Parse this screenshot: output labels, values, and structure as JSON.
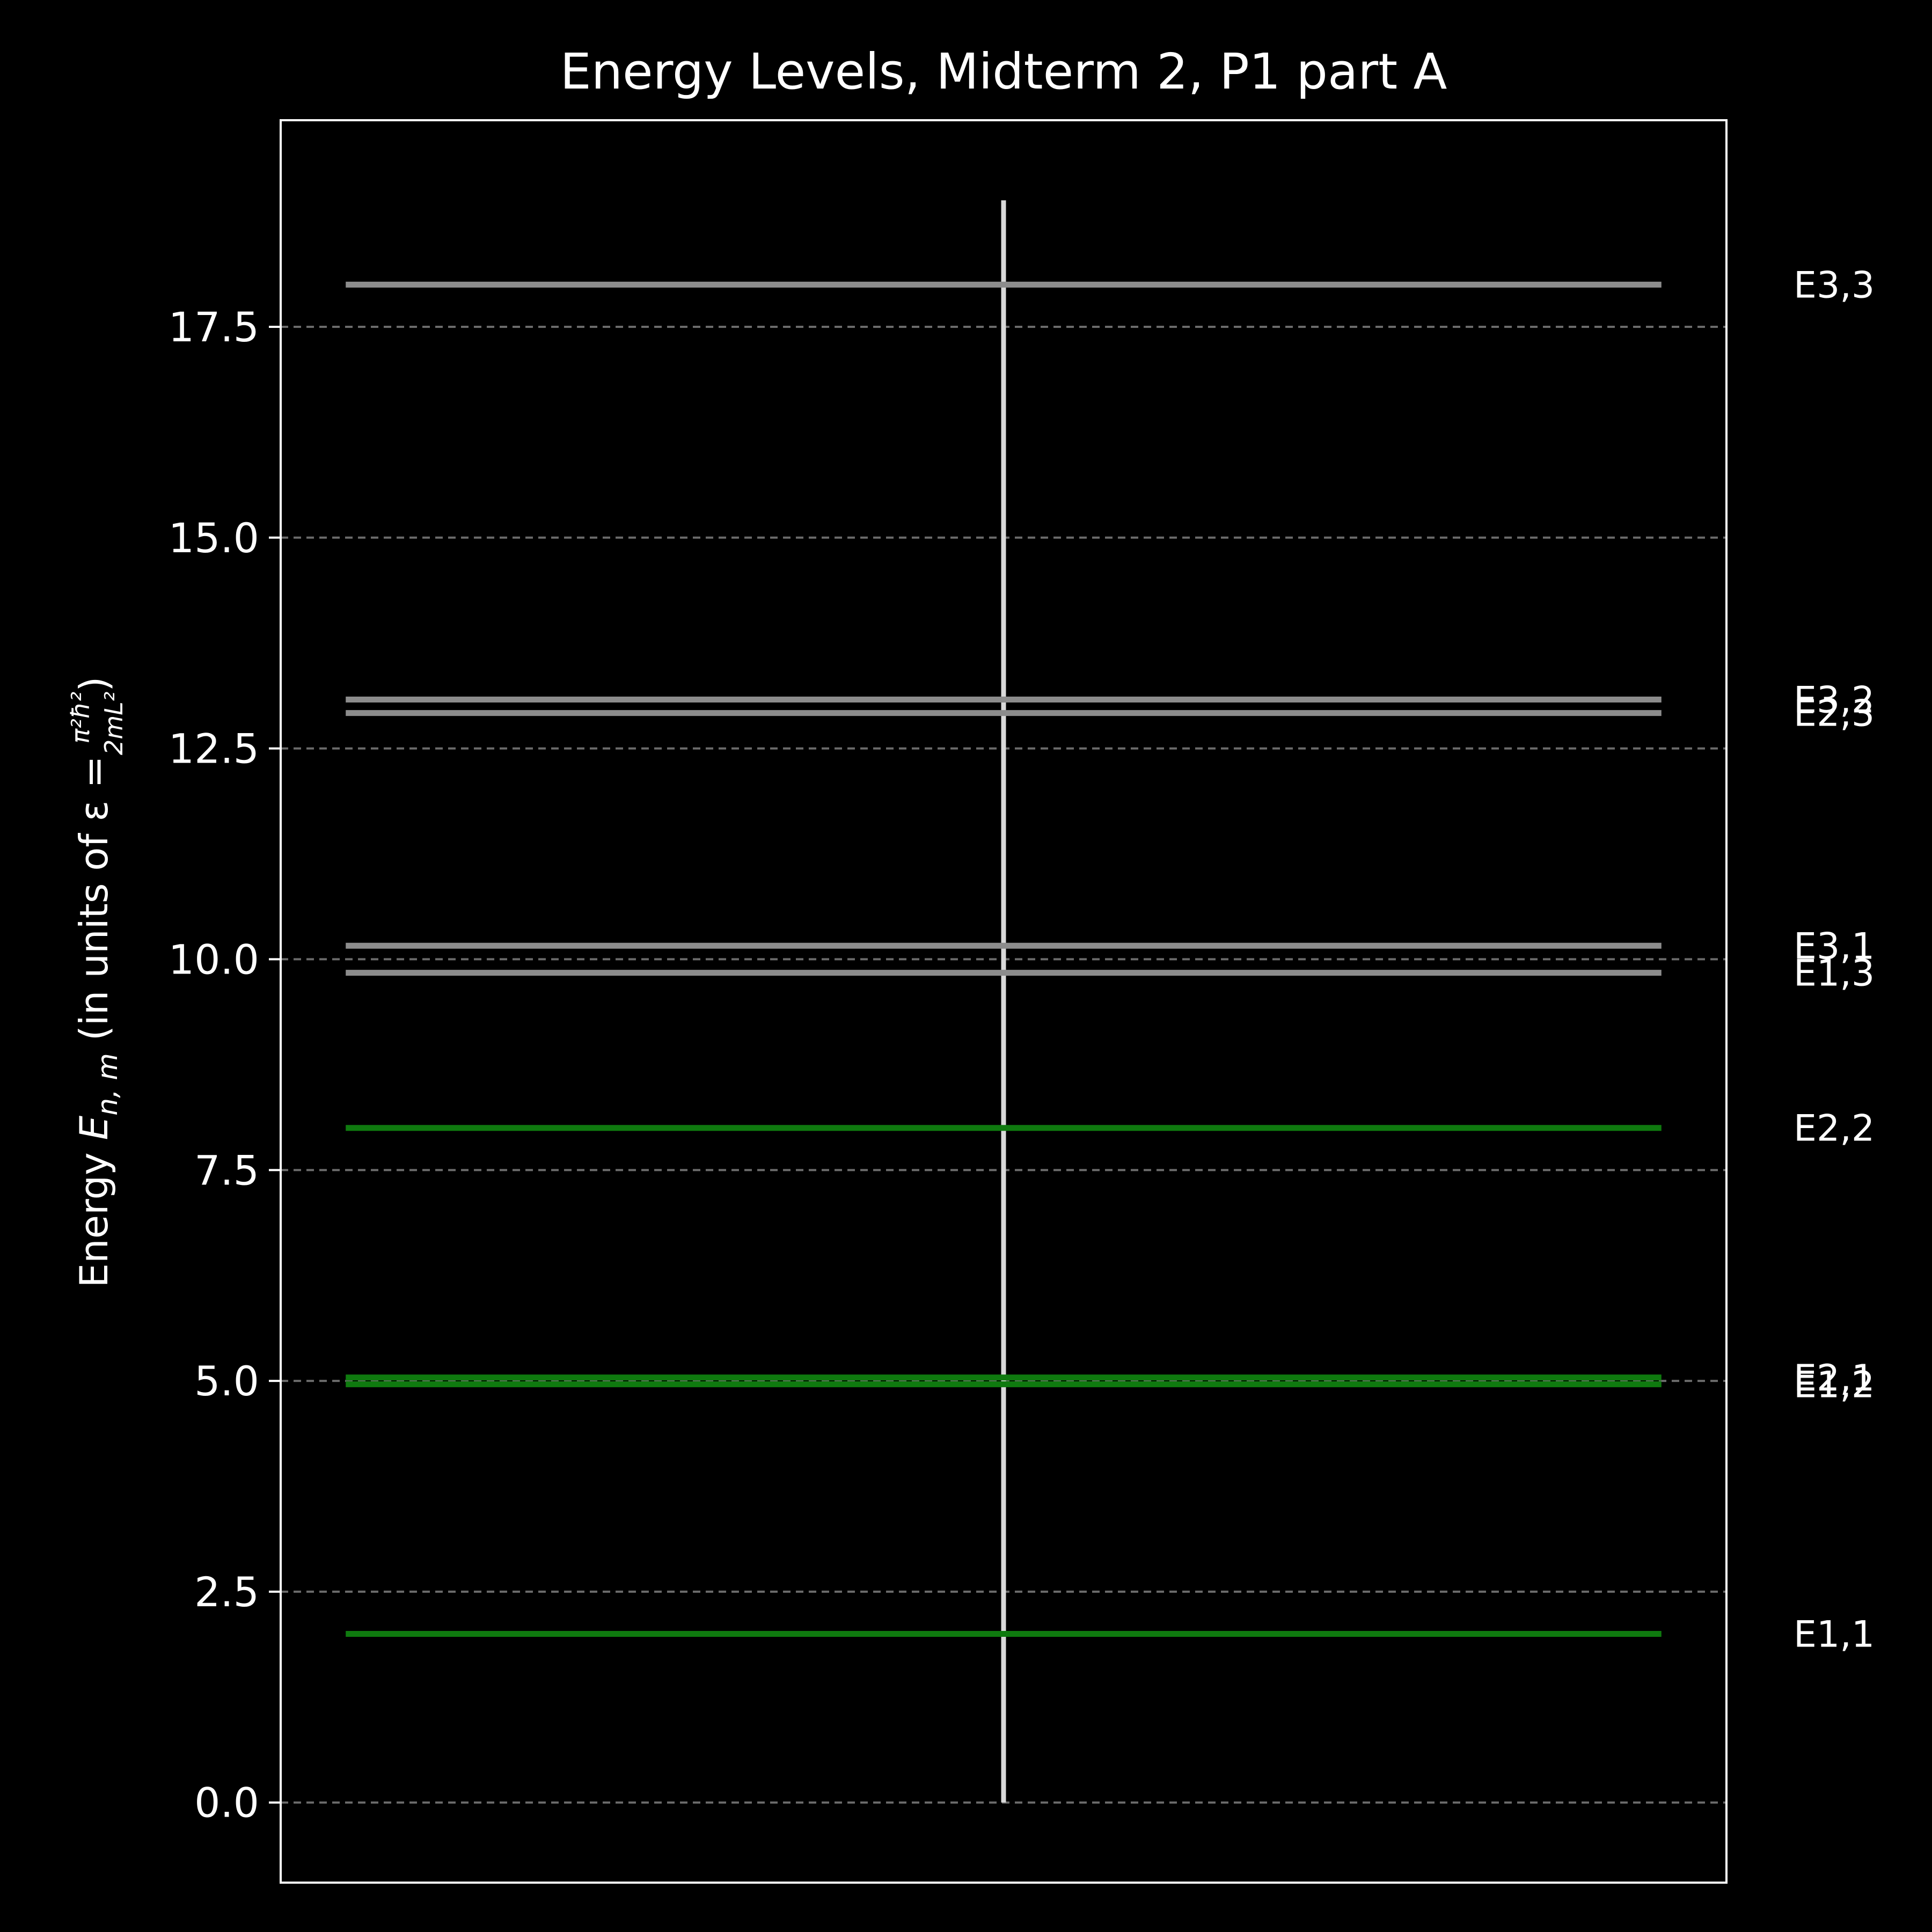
{
  "chart_data": {
    "type": "energy-level",
    "title": "Energy Levels, Midterm 2, P1 part A",
    "ylabel": {
      "prefix": "Energy ",
      "symbol": "E",
      "subscript": "n, m",
      "middle": " (in units of ε = ",
      "numerator": "π²ħ²",
      "denominator": "2mL²",
      "suffix": ")"
    },
    "xlabel": "",
    "ylim": [
      -0.95,
      19.95
    ],
    "yticks": [
      0.0,
      2.5,
      5.0,
      7.5,
      10.0,
      12.5,
      15.0,
      17.5
    ],
    "ytick_labels": [
      "0.0",
      "2.5",
      "5.0",
      "7.5",
      "10.0",
      "12.5",
      "15.0",
      "17.5"
    ],
    "grid": "horizontal dashed",
    "axis_line": {
      "x": 0.5,
      "y_from": 0,
      "y_to": 19,
      "color": "#d9d9d9"
    },
    "levels": [
      {
        "label": "E1,1",
        "n": 1,
        "m": 1,
        "energy": 2.0,
        "color": "#0f7a0f"
      },
      {
        "label": "E1,2",
        "n": 1,
        "m": 2,
        "energy": 4.96,
        "color": "#0f7a0f"
      },
      {
        "label": "E2,1",
        "n": 2,
        "m": 1,
        "energy": 5.04,
        "color": "#0f7a0f"
      },
      {
        "label": "E2,2",
        "n": 2,
        "m": 2,
        "energy": 8.0,
        "color": "#0f7a0f"
      },
      {
        "label": "E1,3",
        "n": 1,
        "m": 3,
        "energy": 9.84,
        "color": "#8c8c8c"
      },
      {
        "label": "E3,1",
        "n": 3,
        "m": 1,
        "energy": 10.16,
        "color": "#8c8c8c"
      },
      {
        "label": "E2,3",
        "n": 2,
        "m": 3,
        "energy": 12.92,
        "color": "#8c8c8c"
      },
      {
        "label": "E3,2",
        "n": 3,
        "m": 2,
        "energy": 13.08,
        "color": "#8c8c8c"
      },
      {
        "label": "E3,3",
        "n": 3,
        "m": 3,
        "energy": 18.0,
        "color": "#8c8c8c"
      }
    ],
    "colors": {
      "background": "#000000",
      "frame": "#ffffff",
      "grid": "#6b6b6b",
      "occupied": "#0f7a0f",
      "unoccupied": "#8c8c8c"
    }
  }
}
